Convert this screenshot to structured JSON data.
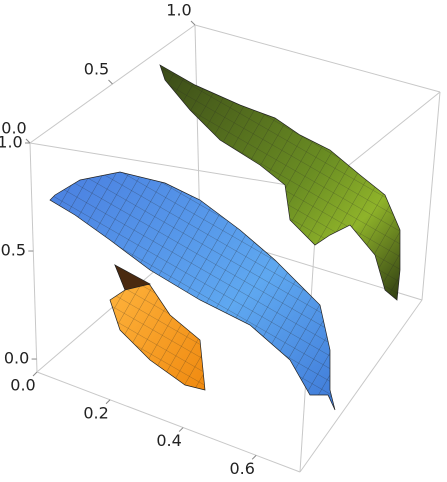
{
  "chart_data": {
    "type": "surface3d",
    "xlim": [
      0,
      0.72
    ],
    "xticks": [
      {
        "value": 0,
        "label": "0.0"
      },
      0.2,
      0.4,
      0.6
    ],
    "ylim": [
      0,
      1
    ],
    "yticks": [
      {
        "value": 0,
        "label": "0.0"
      },
      0.5,
      {
        "value": 1,
        "label": "1.0"
      }
    ],
    "zlim": [
      -0.06,
      1
    ],
    "zticks": [
      {
        "value": 0,
        "label": "0.0"
      },
      0.5,
      {
        "value": 1,
        "label": "1.0"
      }
    ],
    "box": true
  }
}
